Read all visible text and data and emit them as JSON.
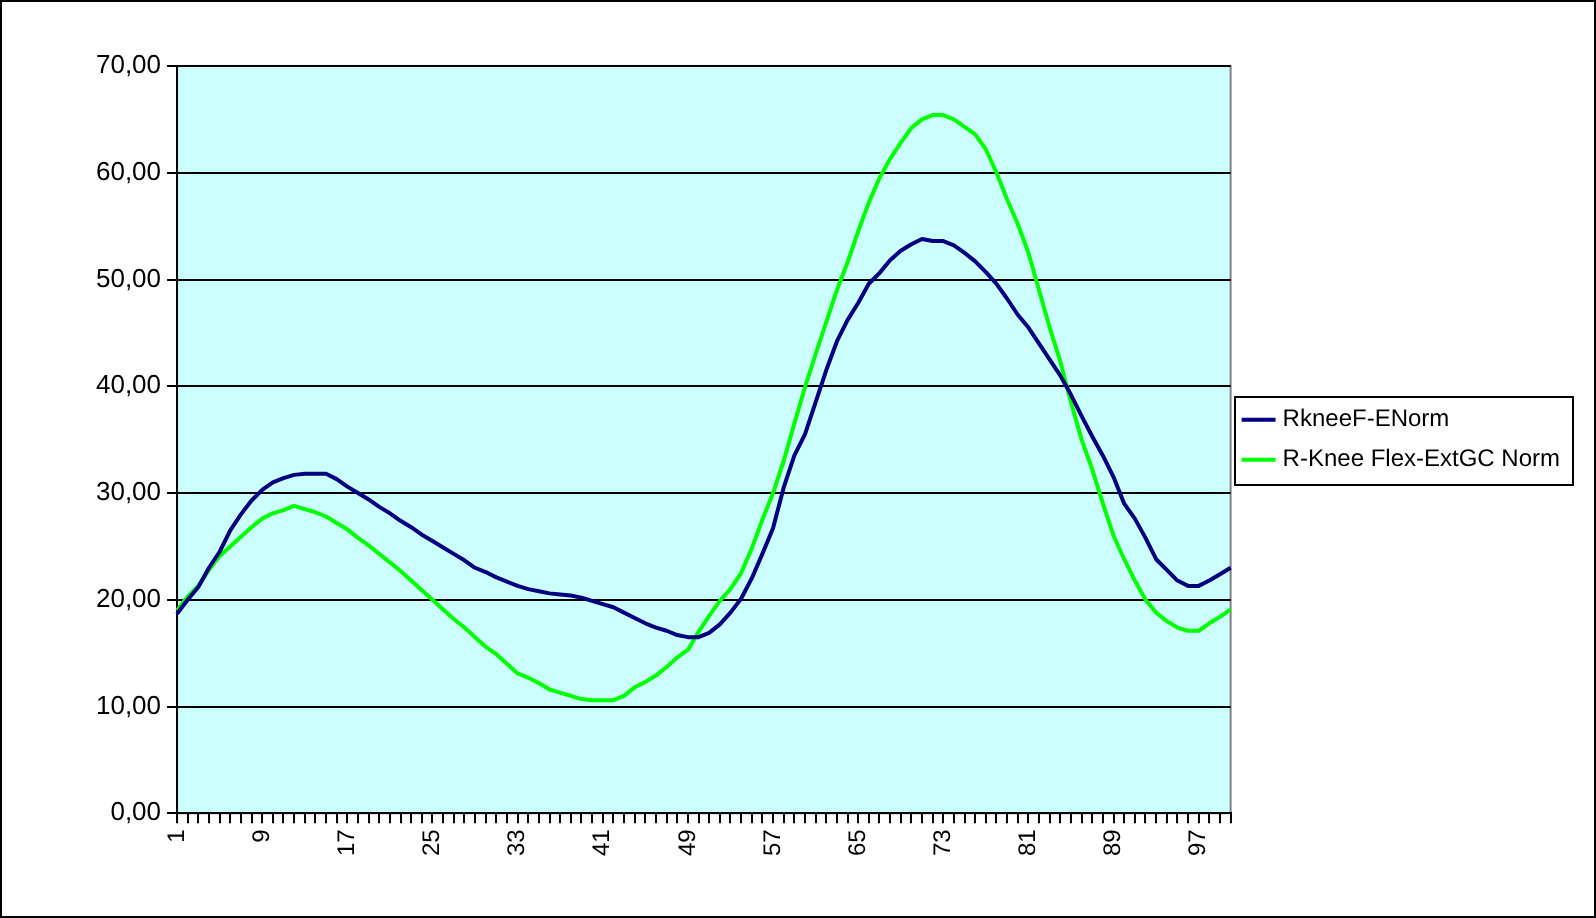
{
  "chart_data": {
    "type": "line",
    "categories": [
      "1",
      null,
      null,
      null,
      null,
      null,
      null,
      null,
      "9",
      null,
      null,
      null,
      null,
      null,
      null,
      null,
      "17",
      null,
      null,
      null,
      null,
      null,
      null,
      null,
      "25",
      null,
      null,
      null,
      null,
      null,
      null,
      null,
      "33",
      null,
      null,
      null,
      null,
      null,
      null,
      null,
      "41",
      null,
      null,
      null,
      null,
      null,
      null,
      null,
      "49",
      null,
      null,
      null,
      null,
      null,
      null,
      null,
      "57",
      null,
      null,
      null,
      null,
      null,
      null,
      null,
      "65",
      null,
      null,
      null,
      null,
      null,
      null,
      null,
      "73",
      null,
      null,
      null,
      null,
      null,
      null,
      null,
      "81",
      null,
      null,
      null,
      null,
      null,
      null,
      null,
      "89",
      null,
      null,
      null,
      null,
      null,
      null,
      null,
      "97",
      null,
      null,
      null
    ],
    "series": [
      {
        "name": "RkneeF-ENorm",
        "color": "#000080",
        "values": [
          18.7,
          20.0,
          21.2,
          23.0,
          24.5,
          26.5,
          28.0,
          29.3,
          30.3,
          31.0,
          31.4,
          31.7,
          31.8,
          31.8,
          31.8,
          31.3,
          30.6,
          30.0,
          29.4,
          28.7,
          28.1,
          27.4,
          26.8,
          26.1,
          25.5,
          24.9,
          24.3,
          23.7,
          23.0,
          22.6,
          22.1,
          21.7,
          21.3,
          21.0,
          20.8,
          20.6,
          20.5,
          20.4,
          20.2,
          19.9,
          19.6,
          19.3,
          18.8,
          18.3,
          17.8,
          17.4,
          17.1,
          16.7,
          16.5,
          16.5,
          16.9,
          17.7,
          18.8,
          20.1,
          22.0,
          24.3,
          26.7,
          30.5,
          33.5,
          35.5,
          38.5,
          41.5,
          44.2,
          46.2,
          47.8,
          49.6,
          50.6,
          51.8,
          52.7,
          53.3,
          53.8,
          53.6,
          53.6,
          53.2,
          52.5,
          51.7,
          50.7,
          49.6,
          48.2,
          46.7,
          45.5,
          44.0,
          42.5,
          41.0,
          39.2,
          37.2,
          35.3,
          33.5,
          31.5,
          29.0,
          27.6,
          25.8,
          23.8,
          22.8,
          21.8,
          21.3,
          21.3,
          21.8,
          22.4,
          23.0
        ]
      },
      {
        "name": "R-Knee Flex-ExtGC Norm",
        "color": "#00ff00",
        "values": [
          19.0,
          20.3,
          21.3,
          22.8,
          24.1,
          25.0,
          25.9,
          26.8,
          27.6,
          28.1,
          28.4,
          28.8,
          28.5,
          28.2,
          27.8,
          27.2,
          26.6,
          25.8,
          25.1,
          24.3,
          23.5,
          22.7,
          21.8,
          20.9,
          20.0,
          19.1,
          18.2,
          17.4,
          16.5,
          15.6,
          14.9,
          14.0,
          13.1,
          12.7,
          12.2,
          11.6,
          11.3,
          11.0,
          10.7,
          10.6,
          10.6,
          10.6,
          11.0,
          11.8,
          12.3,
          12.9,
          13.7,
          14.6,
          15.3,
          17.0,
          18.5,
          19.9,
          21.0,
          22.5,
          24.8,
          27.5,
          30.0,
          33.0,
          36.5,
          39.9,
          43.0,
          46.0,
          49.0,
          51.6,
          54.5,
          57.2,
          59.5,
          61.3,
          62.8,
          64.2,
          65.0,
          65.4,
          65.4,
          65.0,
          64.3,
          63.6,
          62.2,
          60.0,
          57.5,
          55.2,
          52.5,
          49.0,
          45.5,
          42.3,
          38.5,
          35.0,
          32.2,
          29.0,
          26.0,
          23.8,
          21.8,
          20.0,
          18.8,
          18.0,
          17.4,
          17.1,
          17.1,
          17.8,
          18.4,
          19.1
        ]
      }
    ],
    "ylim": [
      0,
      70
    ],
    "yticks": [
      {
        "value": 0,
        "label": "0,00"
      },
      {
        "value": 10,
        "label": "10,00"
      },
      {
        "value": 20,
        "label": "20,00"
      },
      {
        "value": 30,
        "label": "30,00"
      },
      {
        "value": 40,
        "label": "40,00"
      },
      {
        "value": 50,
        "label": "50,00"
      },
      {
        "value": 60,
        "label": "60,00"
      },
      {
        "value": 70,
        "label": "70,00"
      }
    ],
    "grid": "y",
    "legend": "right",
    "marker": "none",
    "line_style": "solid"
  }
}
